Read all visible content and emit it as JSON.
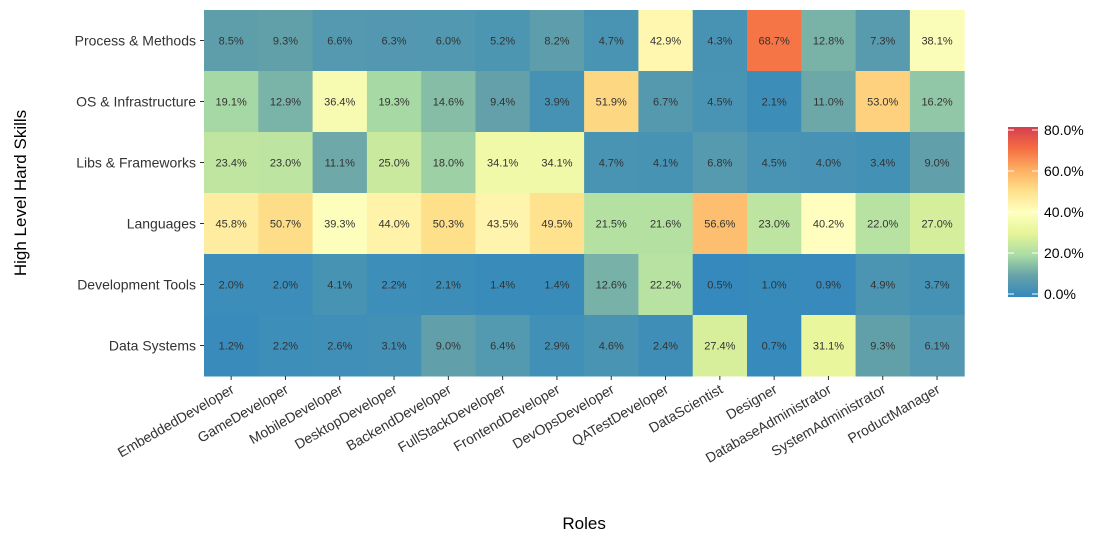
{
  "chart_data": {
    "type": "heatmap",
    "xlabel": "Roles",
    "ylabel": "High Level Hard Skills",
    "columns": [
      "EmbeddedDeveloper",
      "GameDeveloper",
      "MobileDeveloper",
      "DesktopDeveloper",
      "BackendDeveloper",
      "FullStackDeveloper",
      "FrontendDeveloper",
      "DevOpsDeveloper",
      "QATestDeveloper",
      "DataScientist",
      "Designer",
      "DatabaseAdministrator",
      "SystemAdministrator",
      "ProductManager"
    ],
    "rows": [
      "Process & Methods",
      "OS & Infrastructure",
      "Libs & Frameworks",
      "Languages",
      "Development Tools",
      "Data Systems"
    ],
    "values": [
      [
        8.5,
        9.3,
        6.6,
        6.3,
        6.0,
        5.2,
        8.2,
        4.7,
        42.9,
        4.3,
        68.7,
        12.8,
        7.3,
        38.1
      ],
      [
        19.1,
        12.9,
        36.4,
        19.3,
        14.6,
        9.4,
        3.9,
        51.9,
        6.7,
        4.5,
        2.1,
        11.0,
        53.0,
        16.2
      ],
      [
        23.4,
        23.0,
        11.1,
        25.0,
        18.0,
        34.1,
        34.1,
        4.7,
        4.1,
        6.8,
        4.5,
        4.0,
        3.4,
        9.0
      ],
      [
        45.8,
        50.7,
        39.3,
        44.0,
        50.3,
        43.5,
        49.5,
        21.5,
        21.6,
        56.6,
        23.0,
        40.2,
        22.0,
        27.0
      ],
      [
        2.0,
        2.0,
        4.1,
        2.2,
        2.1,
        1.4,
        1.4,
        12.6,
        22.2,
        0.5,
        1.0,
        0.9,
        4.9,
        3.7
      ],
      [
        1.2,
        2.2,
        2.6,
        3.1,
        9.0,
        6.4,
        2.9,
        4.6,
        2.4,
        27.4,
        0.7,
        31.1,
        9.3,
        6.1
      ]
    ],
    "value_suffix": "%",
    "color_scale": {
      "min": 0,
      "max": 80,
      "stops": [
        {
          "value": 0,
          "color": "#3288bd"
        },
        {
          "value": 10,
          "color": "#66a2a8"
        },
        {
          "value": 20,
          "color": "#abdda4"
        },
        {
          "value": 30,
          "color": "#e6f598"
        },
        {
          "value": 40,
          "color": "#ffffbf"
        },
        {
          "value": 50,
          "color": "#fee08b"
        },
        {
          "value": 60,
          "color": "#fdae61"
        },
        {
          "value": 70,
          "color": "#f46d43"
        },
        {
          "value": 80,
          "color": "#d53e4f"
        }
      ]
    },
    "legend": {
      "position": "right",
      "ticks": [
        "0.0%",
        "20.0%",
        "40.0%",
        "60.0%",
        "80.0%"
      ],
      "tick_values": [
        0,
        20,
        40,
        60,
        80
      ]
    }
  }
}
